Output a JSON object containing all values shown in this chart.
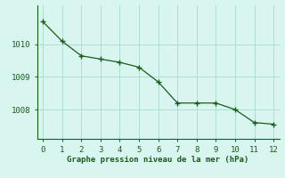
{
  "x": [
    0,
    1,
    2,
    3,
    4,
    5,
    6,
    7,
    8,
    9,
    10,
    11,
    12
  ],
  "y": [
    1010.7,
    1010.1,
    1009.65,
    1009.55,
    1009.45,
    1009.3,
    1008.85,
    1008.2,
    1008.2,
    1008.2,
    1008.0,
    1007.6,
    1007.55
  ],
  "line_color": "#1a5c1a",
  "marker_color": "#1a5c1a",
  "bg_color": "#d8f5f0",
  "grid_color": "#b0ddd0",
  "xlabel": "Graphe pression niveau de la mer (hPa)",
  "xlabel_color": "#1a5c1a",
  "tick_color": "#1a5c1a",
  "spine_color": "#1a5c1a",
  "yticks": [
    1008,
    1009,
    1010
  ],
  "ylim": [
    1007.1,
    1011.2
  ],
  "xlim": [
    -0.3,
    12.3
  ],
  "xticks": [
    0,
    1,
    2,
    3,
    4,
    5,
    6,
    7,
    8,
    9,
    10,
    11,
    12
  ]
}
